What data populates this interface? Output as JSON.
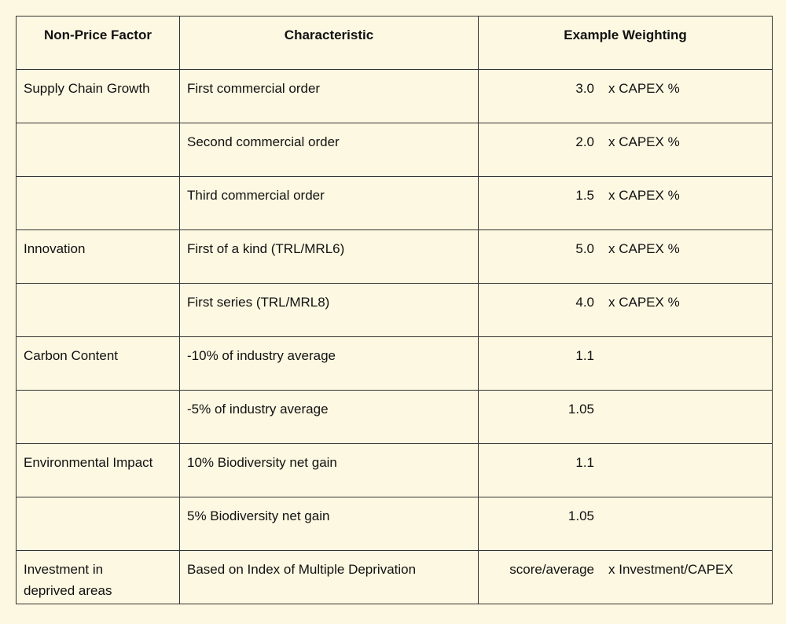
{
  "table": {
    "header": [
      "Non-Price Factor",
      "Characteristic",
      "Example Weighting"
    ],
    "rows": [
      {
        "factor": "Supply Chain Growth",
        "characteristic": "First commercial order",
        "weighting": "3.0",
        "unit": "x CAPEX %"
      },
      {
        "characteristic": "Second commercial order",
        "weighting": "2.0",
        "unit": "x CAPEX %"
      },
      {
        "characteristic": "Third commercial order",
        "weighting": "1.5",
        "unit": "x CAPEX %"
      },
      {
        "factor": "Innovation",
        "characteristic": "First of a kind (TRL/MRL6)",
        "weighting": "5.0",
        "unit": "x CAPEX %"
      },
      {
        "characteristic": "First series (TRL/MRL8)",
        "weighting": "4.0",
        "unit": "x CAPEX %"
      },
      {
        "factor": "Carbon Content",
        "characteristic": "-10% of industry average",
        "weighting": "1.1"
      },
      {
        "characteristic": "-5% of industry average",
        "weighting": "1.05"
      },
      {
        "factor": "Environmental Impact",
        "characteristic": "10% Biodiversity net gain",
        "weighting": "1.1"
      },
      {
        "characteristic": "5% Biodiversity net gain",
        "weighting": "1.05"
      },
      {
        "factor": "Investment in deprived areas",
        "characteristic": "Based on Index of Multiple Deprivation",
        "weighting": "score/average",
        "unit": "x Investment/CAPEX"
      }
    ]
  }
}
